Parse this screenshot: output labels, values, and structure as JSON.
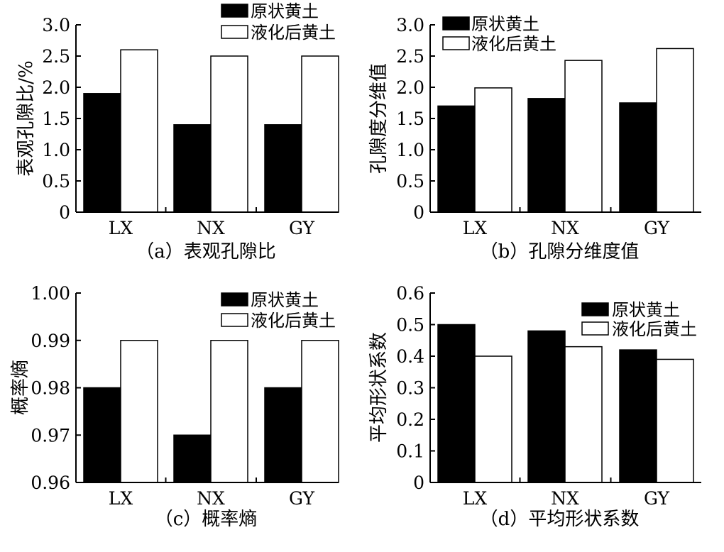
{
  "figure_legend": {
    "series": [
      "原状黄土",
      "液化后黄土"
    ],
    "colors": [
      "#000000",
      "#ffffff"
    ]
  },
  "chart_data": [
    {
      "type": "bar",
      "caption": "（a）表观孔隙比",
      "ylabel": "表观孔隙比/%",
      "xlabel": "",
      "categories": [
        "LX",
        "NX",
        "GY"
      ],
      "ylim": [
        0,
        3.0
      ],
      "yticks": [
        "0",
        "0.5",
        "1.0",
        "1.5",
        "2.0",
        "2.5",
        "3.0"
      ],
      "legend_position": "top-right",
      "series": [
        {
          "name": "原状黄土",
          "color": "#000000",
          "values": [
            1.9,
            1.4,
            1.4
          ]
        },
        {
          "name": "液化后黄土",
          "color": "#ffffff",
          "values": [
            2.6,
            2.5,
            2.5
          ]
        }
      ]
    },
    {
      "type": "bar",
      "caption": "（b）孔隙分维度值",
      "ylabel": "孔隙度分维值",
      "xlabel": "",
      "categories": [
        "LX",
        "NX",
        "GY"
      ],
      "ylim": [
        0,
        3.0
      ],
      "yticks": [
        "0",
        "0.5",
        "1.0",
        "1.5",
        "2.0",
        "2.5",
        "3.0"
      ],
      "legend_position": "top-left",
      "series": [
        {
          "name": "原状黄土",
          "color": "#000000",
          "values": [
            1.7,
            1.82,
            1.75
          ]
        },
        {
          "name": "液化后黄土",
          "color": "#ffffff",
          "values": [
            1.99,
            2.43,
            2.62
          ]
        }
      ]
    },
    {
      "type": "bar",
      "caption": "（c）概率熵",
      "ylabel": "概率熵",
      "xlabel": "",
      "categories": [
        "LX",
        "NX",
        "GY"
      ],
      "ylim": [
        0.96,
        1.0
      ],
      "yticks": [
        "0.96",
        "0.97",
        "0.98",
        "0.99",
        "1.00"
      ],
      "legend_position": "top-right",
      "series": [
        {
          "name": "原状黄土",
          "color": "#000000",
          "values": [
            0.98,
            0.97,
            0.98
          ]
        },
        {
          "name": "液化后黄土",
          "color": "#ffffff",
          "values": [
            0.99,
            0.99,
            0.99
          ]
        }
      ]
    },
    {
      "type": "bar",
      "caption": "（d）平均形状系数",
      "ylabel": "平均形状系数",
      "xlabel": "",
      "categories": [
        "LX",
        "NX",
        "GY"
      ],
      "ylim": [
        0,
        0.6
      ],
      "yticks": [
        "0",
        "0.1",
        "0.2",
        "0.3",
        "0.4",
        "0.5",
        "0.6"
      ],
      "legend_position": "top-right",
      "series": [
        {
          "name": "原状黄土",
          "color": "#000000",
          "values": [
            0.5,
            0.48,
            0.42
          ]
        },
        {
          "name": "液化后黄土",
          "color": "#ffffff",
          "values": [
            0.4,
            0.43,
            0.39
          ]
        }
      ]
    }
  ]
}
